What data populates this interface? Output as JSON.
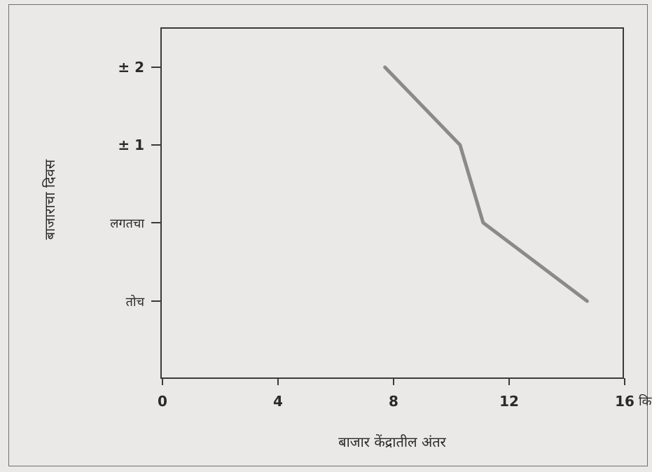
{
  "chart_data": {
    "type": "line",
    "title": "",
    "xlabel": "बाजार केंद्रातील अंतर",
    "ylabel": "बाजाराचा दिवस",
    "x_unit": "कि.मी",
    "xlim": [
      0,
      16
    ],
    "x_ticks": [
      "0",
      "4",
      "8",
      "12",
      "16"
    ],
    "y_categories": [
      "तोच",
      "लगतचा",
      "± 1",
      "± 2"
    ],
    "grid": false,
    "legend": "none",
    "series": [
      {
        "x": [
          7.7,
          10.3,
          11.1,
          14.7
        ],
        "y": [
          "± 2",
          "± 1",
          "लगतचा",
          "तोच"
        ]
      }
    ],
    "line_color": "#8a8a8a",
    "axis_color": "#3a3a3a"
  }
}
